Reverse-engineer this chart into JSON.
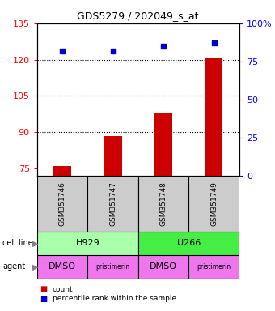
{
  "title": "GDS5279 / 202049_s_at",
  "samples": [
    "GSM351746",
    "GSM351747",
    "GSM351748",
    "GSM351749"
  ],
  "counts": [
    76.0,
    88.5,
    98.0,
    121.0
  ],
  "pct_values": [
    82,
    82,
    85,
    87
  ],
  "cell_lines": [
    [
      "H929",
      2
    ],
    [
      "U266",
      2
    ]
  ],
  "cell_line_colors": [
    "#aaffaa",
    "#44ee44"
  ],
  "agents": [
    "DMSO",
    "pristimerin",
    "DMSO",
    "pristimerin"
  ],
  "agent_color": "#ee77ee",
  "ylim_left": [
    72,
    135
  ],
  "ylim_right": [
    0,
    100
  ],
  "yticks_left": [
    75,
    90,
    105,
    120,
    135
  ],
  "yticks_right": [
    0,
    25,
    50,
    75,
    100
  ],
  "yticklabels_right": [
    "0",
    "25",
    "50",
    "75",
    "100%"
  ],
  "bar_color": "#cc0000",
  "dot_color": "#0000cc",
  "sample_box_color": "#cccccc",
  "bar_width": 0.35
}
